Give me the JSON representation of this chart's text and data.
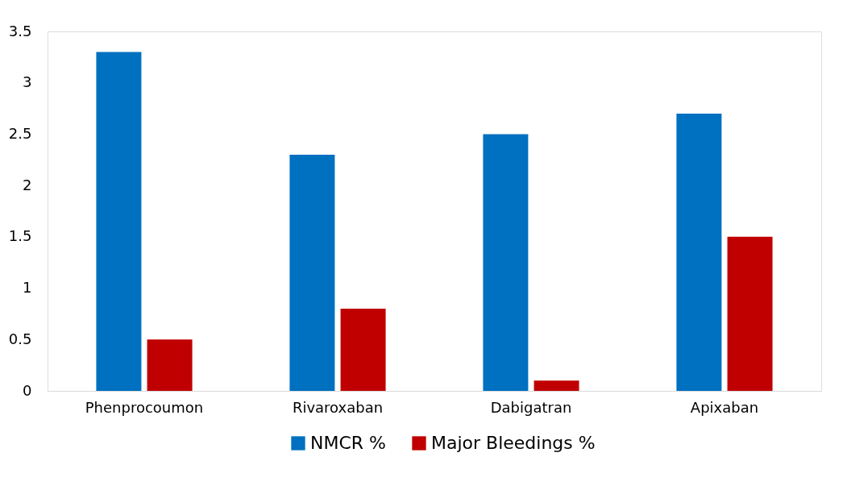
{
  "chart_data": {
    "type": "bar",
    "categories": [
      "Phenprocoumon",
      "Rivaroxaban",
      "Dabigatran",
      "Apixaban"
    ],
    "series": [
      {
        "name": "NMCR %",
        "color": "#0070c0",
        "values": [
          3.3,
          2.3,
          2.5,
          2.7
        ]
      },
      {
        "name": "Major Bleedings %",
        "color": "#c00000",
        "values": [
          0.5,
          0.8,
          0.1,
          1.5
        ]
      }
    ],
    "ylim": [
      0,
      3.5
    ],
    "yticks": [
      0,
      0.5,
      1,
      1.5,
      2,
      2.5,
      3,
      3.5
    ],
    "grid": false,
    "legend": "bottom"
  }
}
